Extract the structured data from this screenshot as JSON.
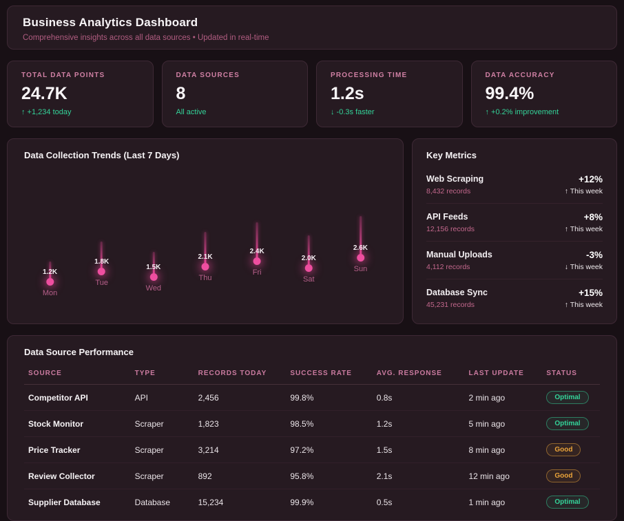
{
  "header": {
    "title": "Business Analytics Dashboard",
    "subtitle": "Comprehensive insights across all data sources • Updated in real-time"
  },
  "stats": [
    {
      "label": "TOTAL DATA POINTS",
      "value": "24.7K",
      "change": "↑ +1,234 today"
    },
    {
      "label": "DATA SOURCES",
      "value": "8",
      "change": "All active"
    },
    {
      "label": "PROCESSING TIME",
      "value": "1.2s",
      "change": "↓ -0.3s faster"
    },
    {
      "label": "DATA ACCURACY",
      "value": "99.4%",
      "change": "↑ +0.2% improvement"
    }
  ],
  "chart": {
    "title": "Data Collection Trends (Last 7 Days)"
  },
  "chart_data": {
    "type": "lollipop-bar",
    "title": "Data Collection Trends (Last 7 Days)",
    "categories": [
      "Mon",
      "Tue",
      "Wed",
      "Thu",
      "Fri",
      "Sat",
      "Sun"
    ],
    "values": [
      1200,
      1800,
      1500,
      2100,
      2400,
      2000,
      2600
    ],
    "value_labels": [
      "1.2K",
      "1.8K",
      "1.5K",
      "2.1K",
      "2.4K",
      "2.0K",
      "2.6K"
    ],
    "accent_color": "#ec4899",
    "grid": false,
    "legend": false
  },
  "key_metrics": {
    "title": "Key Metrics",
    "items": [
      {
        "name": "Web Scraping",
        "records": "8,432 records",
        "change": "+12%",
        "trend": "↑ This week"
      },
      {
        "name": "API Feeds",
        "records": "12,156 records",
        "change": "+8%",
        "trend": "↑ This week"
      },
      {
        "name": "Manual Uploads",
        "records": "4,112 records",
        "change": "-3%",
        "trend": "↓ This week"
      },
      {
        "name": "Database Sync",
        "records": "45,231 records",
        "change": "+15%",
        "trend": "↑ This week"
      }
    ]
  },
  "table": {
    "title": "Data Source Performance",
    "columns": [
      "SOURCE",
      "TYPE",
      "RECORDS TODAY",
      "SUCCESS RATE",
      "AVG. RESPONSE",
      "LAST UPDATE",
      "STATUS"
    ],
    "rows": [
      {
        "source": "Competitor API",
        "type": "API",
        "records": "2,456",
        "success": "99.8%",
        "response": "0.8s",
        "updated": "2 min ago",
        "status": "Optimal"
      },
      {
        "source": "Stock Monitor",
        "type": "Scraper",
        "records": "1,823",
        "success": "98.5%",
        "response": "1.2s",
        "updated": "5 min ago",
        "status": "Optimal"
      },
      {
        "source": "Price Tracker",
        "type": "Scraper",
        "records": "3,214",
        "success": "97.2%",
        "response": "1.5s",
        "updated": "8 min ago",
        "status": "Good"
      },
      {
        "source": "Review Collector",
        "type": "Scraper",
        "records": "892",
        "success": "95.8%",
        "response": "2.1s",
        "updated": "12 min ago",
        "status": "Good"
      },
      {
        "source": "Supplier Database",
        "type": "Database",
        "records": "15,234",
        "success": "99.9%",
        "response": "0.5s",
        "updated": "1 min ago",
        "status": "Optimal"
      }
    ]
  },
  "colors": {
    "accent_pink": "#ec4899",
    "positive_green": "#34d399",
    "warning_amber": "#eba43a",
    "panel_background": "#261a21",
    "page_background": "#181015"
  }
}
